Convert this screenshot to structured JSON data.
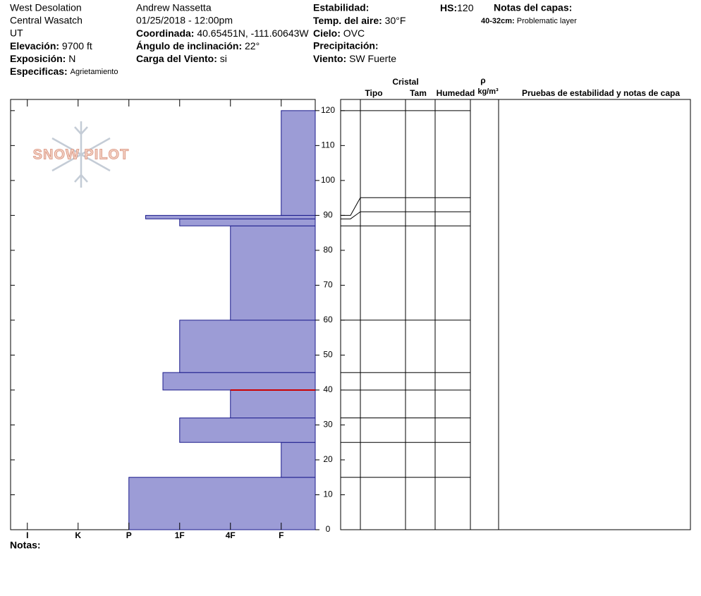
{
  "header": {
    "site": [
      "West Desolation",
      "Central Wasatch",
      "UT"
    ],
    "elevation": {
      "label": "Elevación:",
      "value": "9700 ft"
    },
    "aspect": {
      "label": "Exposición:",
      "value": "N"
    },
    "specifics": {
      "label": "Especificas:",
      "value": "Agrietamiento"
    },
    "observer": "Andrew Nassetta",
    "datetime": "01/25/2018 - 12:00pm",
    "coords": {
      "label": "Coordinada:",
      "value": "40.65451N, -111.60643W"
    },
    "slope": {
      "label": "Ángulo de inclinación:",
      "value": "22°"
    },
    "wind_load": {
      "label": "Carga del Viento:",
      "value": "si"
    },
    "stability": {
      "label": "Estabilidad:"
    },
    "air_temp": {
      "label": "Temp. del aire:",
      "value": "30°F"
    },
    "sky": {
      "label": "Cielo:",
      "value": "OVC"
    },
    "precip": {
      "label": "Precipitación:"
    },
    "wind": {
      "label": "Viento:",
      "value": "SW Fuerte"
    },
    "hs": {
      "label": "HS:",
      "value": "120"
    },
    "layer_notes_title": "Notas del capas:",
    "layer_note": {
      "range": "40-32cm:",
      "text": "Problematic layer"
    },
    "logo": "SNOW PILOT",
    "notes_label": "Notas:"
  },
  "table": {
    "crystal": "Cristal",
    "type": "Tipo",
    "size": "Tam",
    "moisture": "Humedad",
    "density": "ρ",
    "density_unit": "kg/m³",
    "tests": "Pruebas de estabilidad y notas de capa"
  },
  "chart_data": {
    "type": "bar",
    "orientation": "horizontal",
    "x_direction": "right-to-left",
    "color": "#9c9cd6",
    "edge_color": "#1c1c8c",
    "layer_bottoms": [
      0,
      15,
      25,
      32,
      40,
      45,
      60,
      87,
      89,
      90
    ],
    "layer_tops": [
      15,
      25,
      32,
      40,
      45,
      60,
      87,
      89,
      90,
      120
    ],
    "values": [
      4,
      1,
      3,
      2,
      3.33,
      3,
      2,
      3,
      3.67,
      1
    ],
    "problem_layer": {
      "top": 40,
      "bottom": 32,
      "color": "#cc0000"
    },
    "xlim": [
      0.33,
      6.33
    ],
    "xticks": [
      {
        "value": 1,
        "label": "F"
      },
      {
        "value": 2,
        "label": "4F"
      },
      {
        "value": 3,
        "label": "1F"
      },
      {
        "value": 4,
        "label": "P"
      },
      {
        "value": 5,
        "label": "K"
      },
      {
        "value": 6,
        "label": "I"
      }
    ],
    "ylim": [
      0,
      123.2
    ],
    "yticks": [
      0,
      10,
      20,
      30,
      40,
      50,
      60,
      70,
      80,
      90,
      100,
      110,
      120
    ]
  }
}
